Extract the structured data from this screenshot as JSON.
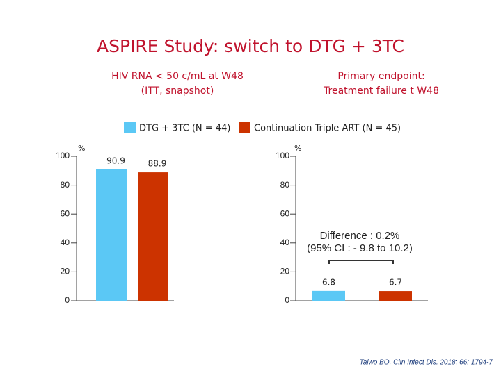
{
  "title": "ASPIRE Study: switch to DTG + 3TC",
  "footnote": "Taiwo BO. Clin Infect Dis. 2018; 66: 1794-7",
  "chart_data": [
    {
      "type": "bar",
      "title": [
        "HIV RNA < 50 c/mL at W48",
        "(ITT, snapshot)"
      ],
      "y_label": "%",
      "ylim": [
        0,
        100
      ],
      "yticks": [
        0,
        20,
        40,
        60,
        80,
        100
      ],
      "series": [
        {
          "name": "DTG + 3TC (N = 44)",
          "color": "#5bc8f5",
          "values": [
            90.9
          ]
        },
        {
          "name": "Continuation Triple ART (N = 45)",
          "color": "#cc3300",
          "values": [
            88.9
          ]
        }
      ]
    },
    {
      "type": "bar",
      "title": [
        "Primary endpoint:",
        "Treatment failure t W48"
      ],
      "y_label": "%",
      "ylim": [
        0,
        100
      ],
      "yticks": [
        0,
        20,
        40,
        60,
        80,
        100
      ],
      "annotation": [
        "Difference : 0.2%",
        "(95% CI : - 9.8 to 10.2)"
      ],
      "series": [
        {
          "color": "#5bc8f5",
          "values": [
            6.8
          ]
        },
        {
          "color": "#cc3300",
          "values": [
            6.7
          ]
        }
      ]
    }
  ]
}
